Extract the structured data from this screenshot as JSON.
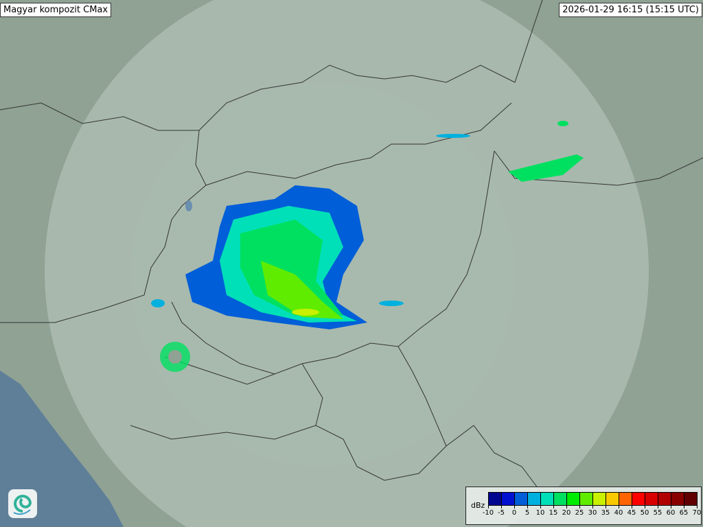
{
  "header": {
    "title": "Magyar kompozit  CMax",
    "timestamp": "2026-01-29 16:15 (15:15 UTC)"
  },
  "legend": {
    "unit": "dBz",
    "ticks": [
      "-10",
      "-5",
      "0",
      "5",
      "10",
      "15",
      "20",
      "25",
      "30",
      "35",
      "40",
      "45",
      "50",
      "55",
      "60",
      "65",
      "70"
    ],
    "colors": [
      "#00058f",
      "#0010d0",
      "#005ed8",
      "#00b0de",
      "#00e0b8",
      "#00e060",
      "#00ec00",
      "#60ec00",
      "#c8f000",
      "#f8c800",
      "#ff6400",
      "#ff0000",
      "#d80000",
      "#b00000",
      "#880000",
      "#600000"
    ]
  },
  "logo": {
    "icon": "omsz-swirl-logo"
  },
  "map": {
    "background": "#8fa294",
    "coverage_color": "#d8e2dc",
    "sea_color": "#5f7f98"
  }
}
